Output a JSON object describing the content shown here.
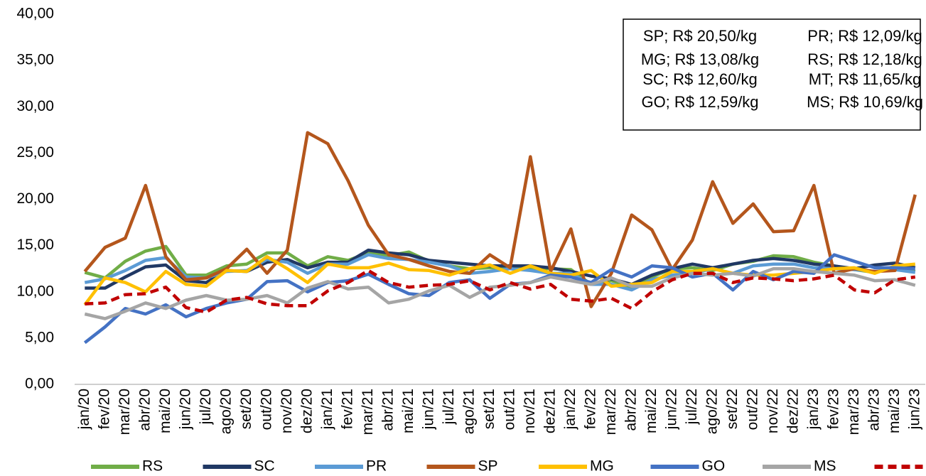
{
  "chart_data": {
    "type": "line",
    "categories": [
      "jan/20",
      "fev/20",
      "mar/20",
      "abr/20",
      "mai/20",
      "jun/20",
      "jul/20",
      "ago/20",
      "set/20",
      "out/20",
      "nov/20",
      "dez/20",
      "jan/21",
      "fev/21",
      "mar/21",
      "abr/21",
      "mai/21",
      "jun/21",
      "jul/21",
      "ago/21",
      "set/21",
      "out/21",
      "nov/21",
      "dez/21",
      "jan/22",
      "fev/22",
      "mar/22",
      "abr/22",
      "mai/22",
      "jun/22",
      "jul/22",
      "ago/22",
      "set/22",
      "out/22",
      "nov/22",
      "dez/22",
      "jan/23",
      "fev/23",
      "mar/23",
      "abr/23",
      "mai/23",
      "jun/23"
    ],
    "series": [
      {
        "name": "RS",
        "color": "#70ad47",
        "values": [
          12.1,
          11.5,
          13.3,
          14.4,
          14.9,
          11.8,
          11.8,
          12.8,
          13.0,
          14.2,
          14.2,
          12.8,
          13.8,
          13.4,
          14.2,
          13.9,
          14.3,
          13.3,
          12.8,
          12.5,
          12.6,
          12.5,
          12.5,
          12.5,
          12.4,
          10.8,
          11.2,
          10.5,
          11.6,
          12.5,
          12.6,
          12.3,
          13.0,
          13.3,
          13.9,
          13.8,
          13.2,
          12.8,
          12.4,
          12.1,
          12.7,
          12.2
        ]
      },
      {
        "name": "SC",
        "color": "#203864",
        "values": [
          10.4,
          10.4,
          11.6,
          12.7,
          12.9,
          11.2,
          11.0,
          12.3,
          12.2,
          13.2,
          13.5,
          12.6,
          13.2,
          13.2,
          14.5,
          14.2,
          14.0,
          13.4,
          13.2,
          13.0,
          12.8,
          12.8,
          12.8,
          12.6,
          12.2,
          11.7,
          11.4,
          10.8,
          11.8,
          12.5,
          13.0,
          12.6,
          13.0,
          13.4,
          13.6,
          13.4,
          13.0,
          12.8,
          12.5,
          12.9,
          13.1,
          12.6
        ]
      },
      {
        "name": "PR",
        "color": "#5b9bd5",
        "values": [
          11.0,
          11.4,
          12.3,
          13.4,
          13.7,
          11.6,
          11.5,
          12.2,
          12.3,
          13.5,
          13.2,
          12.0,
          13.0,
          13.0,
          14.0,
          13.6,
          13.5,
          13.2,
          12.8,
          12.0,
          12.2,
          12.5,
          12.3,
          12.0,
          12.0,
          10.8,
          10.8,
          10.2,
          11.3,
          11.8,
          12.0,
          12.5,
          12.0,
          12.8,
          13.0,
          13.0,
          12.6,
          12.5,
          12.4,
          12.2,
          12.4,
          12.1
        ]
      },
      {
        "name": "SP",
        "color": "#b4561c",
        "values": [
          12.2,
          14.8,
          15.8,
          21.5,
          13.8,
          11.3,
          11.5,
          12.5,
          14.6,
          12.0,
          14.5,
          27.2,
          26.0,
          22.0,
          17.2,
          14.0,
          13.5,
          12.8,
          12.2,
          12.0,
          14.0,
          12.6,
          24.6,
          12.2,
          16.8,
          8.4,
          12.0,
          18.3,
          16.7,
          12.4,
          15.6,
          21.9,
          17.4,
          19.5,
          16.5,
          16.6,
          21.5,
          12.0,
          12.5,
          12.2,
          12.3,
          20.5
        ]
      },
      {
        "name": "MG",
        "color": "#ffc000",
        "values": [
          8.6,
          11.5,
          11.0,
          10.0,
          12.2,
          10.8,
          10.6,
          12.3,
          12.2,
          13.8,
          12.5,
          11.0,
          13.0,
          12.6,
          12.6,
          13.1,
          12.4,
          12.3,
          11.8,
          12.5,
          12.9,
          12.0,
          12.8,
          12.0,
          11.8,
          12.3,
          10.6,
          10.8,
          11.0,
          12.2,
          12.2,
          12.5,
          12.0,
          11.8,
          11.8,
          12.0,
          12.2,
          12.5,
          12.6,
          12.0,
          12.8,
          13.0
        ]
      },
      {
        "name": "GO",
        "color": "#4472c4",
        "values": [
          4.5,
          6.2,
          8.2,
          7.6,
          8.6,
          7.3,
          8.2,
          8.8,
          9.2,
          11.1,
          11.2,
          10.0,
          11.0,
          11.2,
          11.9,
          10.8,
          9.8,
          9.6,
          11.0,
          11.3,
          9.3,
          10.8,
          11.0,
          11.8,
          11.6,
          11.0,
          12.4,
          11.6,
          12.8,
          12.6,
          11.6,
          12.0,
          10.2,
          12.2,
          11.3,
          12.2,
          12.0,
          14.0,
          13.3,
          12.6,
          12.6,
          12.5
        ]
      },
      {
        "name": "MS",
        "color": "#a5a5a5",
        "values": [
          7.6,
          7.1,
          7.9,
          8.8,
          8.2,
          9.1,
          9.6,
          9.1,
          9.2,
          9.6,
          8.8,
          10.4,
          11.1,
          10.3,
          10.5,
          8.8,
          9.2,
          10.1,
          10.7,
          9.4,
          10.5,
          10.7,
          11.0,
          11.6,
          11.2,
          10.8,
          11.5,
          10.6,
          10.6,
          11.5,
          12.0,
          11.8,
          12.0,
          11.7,
          12.5,
          12.5,
          12.2,
          12.0,
          11.8,
          11.2,
          11.3,
          10.7
        ]
      },
      {
        "name": "MT",
        "color": "#c00000",
        "dashed": true,
        "values": [
          8.7,
          8.8,
          9.7,
          9.8,
          10.5,
          8.3,
          7.8,
          9.1,
          9.4,
          8.7,
          8.5,
          8.5,
          10.1,
          11.0,
          12.3,
          11.0,
          10.5,
          10.7,
          10.8,
          11.2,
          10.2,
          11.0,
          10.3,
          10.8,
          9.2,
          9.0,
          9.3,
          8.2,
          10.0,
          11.3,
          12.0,
          12.0,
          11.0,
          11.5,
          11.4,
          11.2,
          11.4,
          11.8,
          10.2,
          9.9,
          11.3,
          11.6
        ]
      }
    ],
    "ylim": [
      0,
      40
    ],
    "yticks": [
      {
        "value": 0,
        "label": "0,00"
      },
      {
        "value": 5,
        "label": "5,00"
      },
      {
        "value": 10,
        "label": "10,00"
      },
      {
        "value": 15,
        "label": "15,00"
      },
      {
        "value": 20,
        "label": "20,00"
      },
      {
        "value": 25,
        "label": "25,00"
      },
      {
        "value": 30,
        "label": "30,00"
      },
      {
        "value": 35,
        "label": "35,00"
      },
      {
        "value": 40,
        "label": "40,00"
      }
    ],
    "grid": false,
    "legend": "bottom",
    "annotations": [
      "SP; R$ 20,50/kg",
      "PR; R$ 12,09/kg",
      "MG; R$ 13,08/kg",
      "RS; R$ 12,18/kg",
      "SC; R$ 12,60/kg",
      "MT; R$ 11,65/kg",
      "GO; R$ 12,59/kg",
      "MS; R$ 10,69/kg"
    ]
  }
}
